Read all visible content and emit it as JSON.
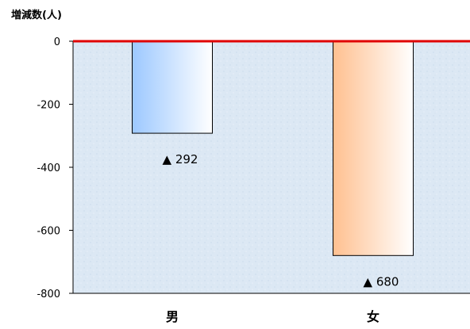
{
  "chart_data": {
    "type": "bar",
    "title": "",
    "xlabel": "",
    "ylabel": "増減数(人)",
    "categories": [
      "男",
      "女"
    ],
    "values": [
      -292,
      -680
    ],
    "data_labels": [
      "▲ 292",
      "▲ 680"
    ],
    "y_ticks": [
      "0",
      "-200",
      "-400",
      "-600",
      "-800"
    ],
    "y_tick_values": [
      0,
      -200,
      -400,
      -600,
      -800
    ],
    "ylim": [
      -800,
      0
    ],
    "grid": false,
    "legend": "none",
    "colors": {
      "zero_line": "#e00000",
      "plot_background": "#dce8f4",
      "bar_male_start": "#9cc8ff",
      "bar_male_end": "#ffffff",
      "bar_female_start": "#ffc090",
      "bar_female_end": "#ffffff",
      "axis": "#000000"
    }
  }
}
